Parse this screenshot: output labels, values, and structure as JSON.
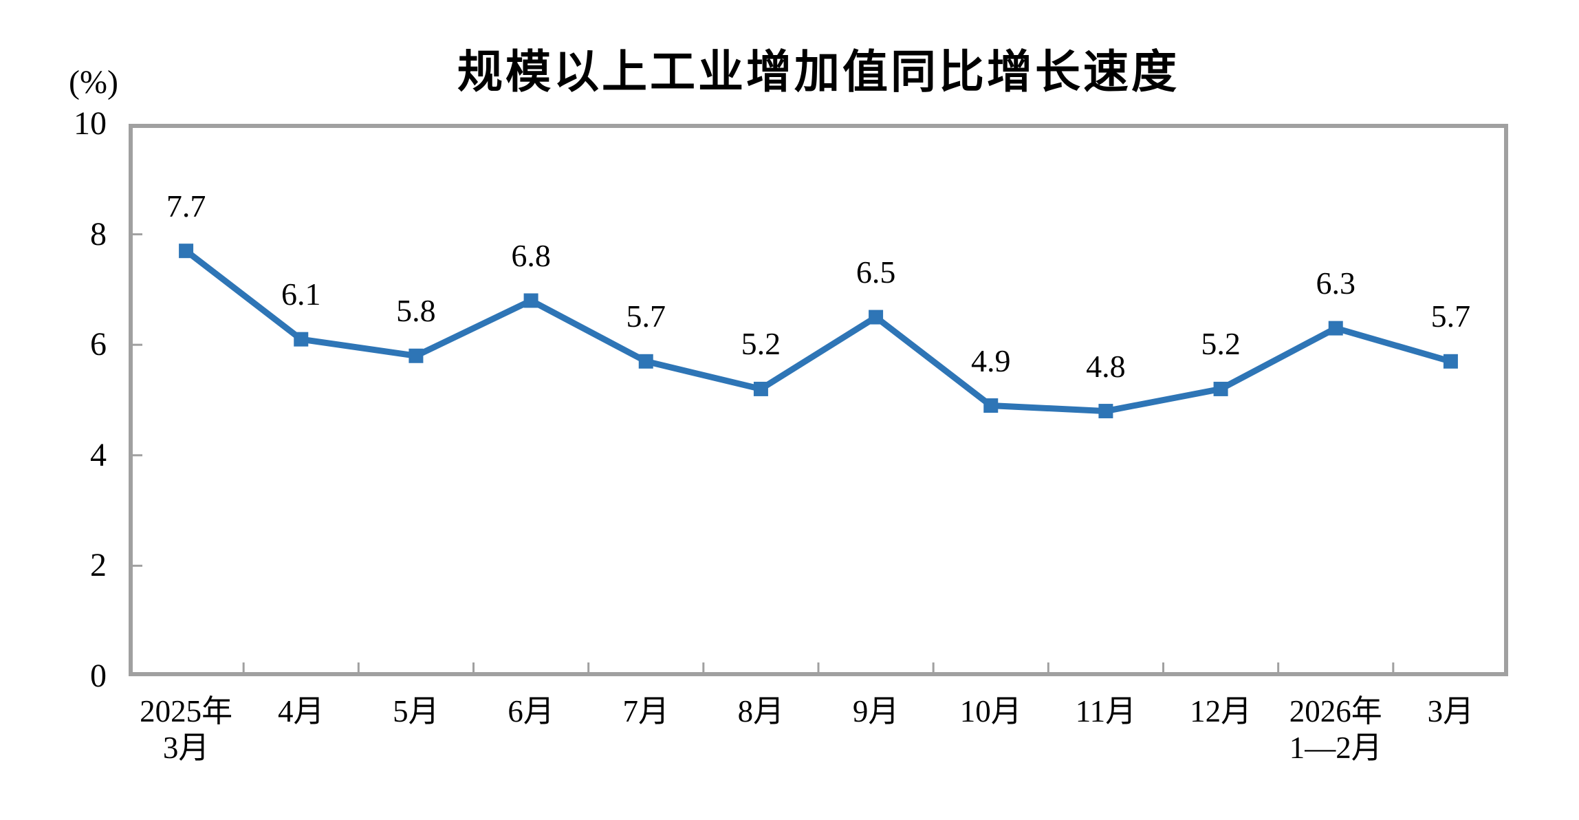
{
  "chart_data": {
    "type": "line",
    "title": "规模以上工业增加值同比增长速度",
    "ylabel": "(%)",
    "xlabel": "",
    "categories": [
      [
        "2025年",
        "3月"
      ],
      [
        "4月"
      ],
      [
        "5月"
      ],
      [
        "6月"
      ],
      [
        "7月"
      ],
      [
        "8月"
      ],
      [
        "9月"
      ],
      [
        "10月"
      ],
      [
        "11月"
      ],
      [
        "12月"
      ],
      [
        "2026年",
        "1—2月"
      ],
      [
        "3月"
      ]
    ],
    "values": [
      7.7,
      6.1,
      5.8,
      6.8,
      5.7,
      5.2,
      6.5,
      4.9,
      4.8,
      5.2,
      6.3,
      5.7
    ],
    "data_labels": [
      "7.7",
      "6.1",
      "5.8",
      "6.8",
      "5.7",
      "5.2",
      "6.5",
      "4.9",
      "4.8",
      "5.2",
      "6.3",
      "5.7"
    ],
    "ylim": [
      0,
      10
    ],
    "yticks": [
      0,
      2,
      4,
      6,
      8,
      10
    ],
    "grid": false,
    "legend": "none",
    "series_name": "规模以上工业增加值同比增长速度",
    "colors": {
      "line": "#2E75B6",
      "marker": "#2E75B6",
      "axis": "#A0A0A0",
      "tick": "#A0A0A0",
      "text": "#000000"
    }
  }
}
